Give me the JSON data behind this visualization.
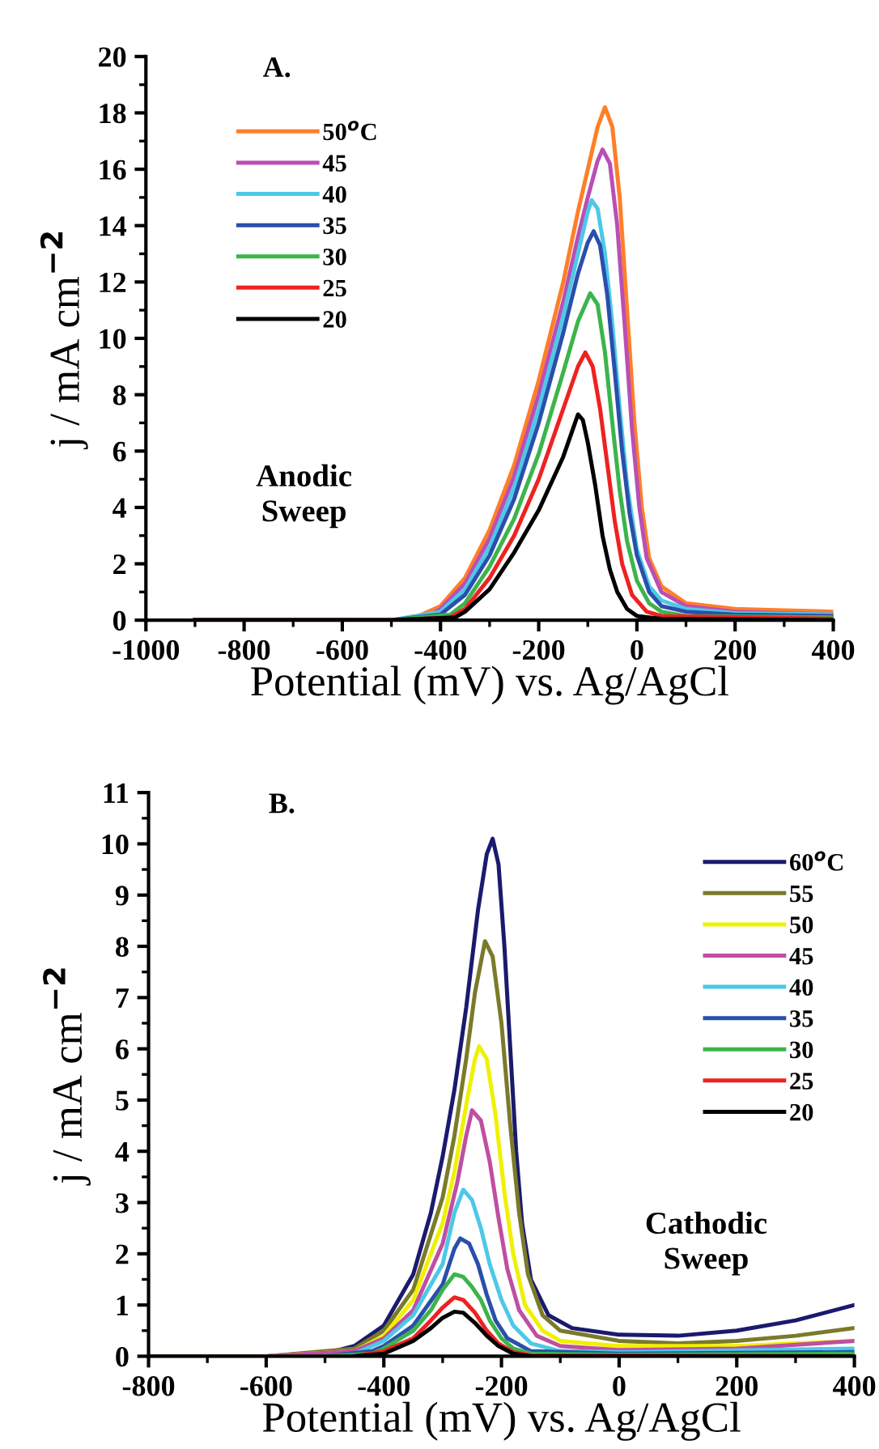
{
  "chart_data": [
    {
      "type": "line",
      "title": "A.",
      "xlabel": "Potential (mV) vs. Ag/AgCl",
      "ylabel": "j / mA cm$^{−2}$",
      "xlim": [
        -1000,
        400
      ],
      "xticks": [
        -1000,
        -800,
        -600,
        -400,
        -200,
        0,
        200,
        400
      ],
      "ylim": [
        0,
        20
      ],
      "yticks": [
        0,
        2,
        4,
        6,
        8,
        10,
        12,
        14,
        16,
        18,
        20
      ],
      "grid": false,
      "legend": "top left",
      "annotations": [
        "Anodic\nSweep"
      ],
      "series": [
        {
          "name": "50$^{o}$C",
          "color": "#ff7f27",
          "x": [
            -900,
            -500,
            -450,
            -400,
            -350,
            -300,
            -250,
            -200,
            -150,
            -120,
            -100,
            -80,
            -65,
            -50,
            -35,
            -20,
            -5,
            10,
            25,
            50,
            100,
            200,
            300,
            400
          ],
          "values": [
            0,
            0,
            0.1,
            0.5,
            1.5,
            3.2,
            5.5,
            8.5,
            12,
            14.5,
            16,
            17.5,
            18.2,
            17.5,
            15,
            11,
            7,
            4,
            2.2,
            1.2,
            0.6,
            0.4,
            0.35,
            0.3
          ]
        },
        {
          "name": "45",
          "color": "#b94fb6",
          "x": [
            -900,
            -500,
            -420,
            -400,
            -350,
            -300,
            -250,
            -200,
            -150,
            -120,
            -100,
            -80,
            -70,
            -55,
            -40,
            -25,
            -10,
            5,
            20,
            50,
            100,
            200,
            300,
            400
          ],
          "values": [
            0,
            0,
            0.2,
            0.4,
            1.3,
            2.9,
            5.1,
            8,
            11.3,
            13.6,
            15,
            16.3,
            16.7,
            16.2,
            14,
            10.5,
            6.8,
            4,
            2.2,
            1,
            0.5,
            0.3,
            0.25,
            0.2
          ]
        },
        {
          "name": "40",
          "color": "#4dc8e8",
          "x": [
            -900,
            -500,
            -400,
            -350,
            -300,
            -250,
            -200,
            -150,
            -120,
            -100,
            -92,
            -80,
            -65,
            -50,
            -35,
            -20,
            0,
            25,
            50,
            100,
            200,
            400
          ],
          "values": [
            0,
            0,
            0.3,
            1.1,
            2.6,
            4.7,
            7.5,
            10.8,
            13,
            14.5,
            14.9,
            14.6,
            13,
            10.5,
            7.5,
            4.8,
            2.5,
            1.2,
            0.7,
            0.4,
            0.25,
            0.2
          ]
        },
        {
          "name": "35",
          "color": "#2a4faa",
          "x": [
            -900,
            -500,
            -400,
            -350,
            -300,
            -250,
            -200,
            -150,
            -120,
            -100,
            -88,
            -75,
            -60,
            -45,
            -30,
            -15,
            0,
            25,
            50,
            100,
            200,
            400
          ],
          "values": [
            0,
            0,
            0.2,
            0.9,
            2.3,
            4.3,
            7,
            10.2,
            12.3,
            13.4,
            13.8,
            13.3,
            11.5,
            8.8,
            6,
            3.8,
            2.3,
            1,
            0.5,
            0.3,
            0.2,
            0.15
          ]
        },
        {
          "name": "30",
          "color": "#3cb44b",
          "x": [
            -900,
            -500,
            -380,
            -350,
            -300,
            -250,
            -200,
            -150,
            -120,
            -95,
            -80,
            -65,
            -50,
            -35,
            -20,
            0,
            25,
            50,
            100,
            400
          ],
          "values": [
            0,
            0,
            0.2,
            0.6,
            1.9,
            3.6,
            5.9,
            8.8,
            10.6,
            11.6,
            11.2,
            9.5,
            7,
            4.6,
            2.8,
            1.4,
            0.6,
            0.3,
            0.15,
            0.1
          ]
        },
        {
          "name": "25",
          "color": "#ee2222",
          "x": [
            -900,
            -500,
            -380,
            -350,
            -300,
            -250,
            -200,
            -150,
            -120,
            -105,
            -90,
            -75,
            -60,
            -45,
            -30,
            -10,
            20,
            50,
            400
          ],
          "values": [
            0,
            0,
            0.1,
            0.4,
            1.5,
            3,
            5,
            7.5,
            9,
            9.5,
            9,
            7.5,
            5.5,
            3.5,
            2,
            0.9,
            0.3,
            0.15,
            0.05
          ]
        },
        {
          "name": "20",
          "color": "#000000",
          "x": [
            -900,
            -500,
            -370,
            -350,
            -300,
            -250,
            -200,
            -150,
            -130,
            -120,
            -110,
            -100,
            -85,
            -70,
            -55,
            -40,
            -20,
            0,
            50,
            400
          ],
          "values": [
            0,
            0,
            0.1,
            0.3,
            1.1,
            2.4,
            3.9,
            5.8,
            6.8,
            7.3,
            7.1,
            6.3,
            4.8,
            3,
            1.8,
            1,
            0.4,
            0.15,
            0.05,
            0
          ]
        }
      ]
    },
    {
      "type": "line",
      "title": "B.",
      "xlabel": "Potential (mV) vs. Ag/AgCl",
      "ylabel": "j / mA cm$^{−2}$",
      "xlim": [
        -800,
        400
      ],
      "xticks": [
        -800,
        -600,
        -400,
        -200,
        0,
        200,
        400
      ],
      "ylim": [
        0,
        11
      ],
      "yticks": [
        0,
        1,
        2,
        3,
        4,
        5,
        6,
        7,
        8,
        9,
        10,
        11
      ],
      "grid": false,
      "legend": "top right",
      "annotations": [
        "Cathodic\nSweep"
      ],
      "series": [
        {
          "name": "60$^{o}$C",
          "color": "#1a1a6e",
          "x": [
            -800,
            -600,
            -500,
            -450,
            -400,
            -350,
            -320,
            -300,
            -280,
            -260,
            -240,
            -225,
            -215,
            -205,
            -195,
            -185,
            -175,
            -165,
            -150,
            -120,
            -80,
            0,
            100,
            200,
            300,
            400
          ],
          "values": [
            0,
            0,
            0.05,
            0.2,
            0.6,
            1.6,
            2.8,
            3.9,
            5.2,
            6.8,
            8.7,
            9.8,
            10.1,
            9.6,
            8,
            6,
            4,
            2.6,
            1.5,
            0.8,
            0.55,
            0.42,
            0.4,
            0.5,
            0.7,
            1.0
          ]
        },
        {
          "name": "55",
          "color": "#7a7a2a",
          "x": [
            -800,
            -600,
            -450,
            -400,
            -350,
            -300,
            -280,
            -260,
            -245,
            -228,
            -215,
            -200,
            -185,
            -170,
            -155,
            -130,
            -100,
            0,
            100,
            200,
            300,
            400
          ],
          "values": [
            0,
            0,
            0.15,
            0.5,
            1.3,
            3.1,
            4.3,
            5.8,
            7.1,
            8.1,
            7.8,
            6.5,
            4.5,
            2.8,
            1.6,
            0.8,
            0.5,
            0.3,
            0.25,
            0.3,
            0.4,
            0.55
          ]
        },
        {
          "name": "50",
          "color": "#f0f000",
          "x": [
            -600,
            -450,
            -400,
            -350,
            -300,
            -280,
            -260,
            -245,
            -238,
            -225,
            -210,
            -195,
            -180,
            -160,
            -130,
            -100,
            0,
            200,
            400
          ],
          "values": [
            0,
            0.1,
            0.4,
            1.1,
            2.6,
            3.6,
            4.9,
            5.8,
            6.05,
            5.8,
            4.7,
            3.2,
            2,
            1,
            0.5,
            0.3,
            0.2,
            0.2,
            0.3
          ]
        },
        {
          "name": "45",
          "color": "#c04fa0",
          "x": [
            -600,
            -450,
            -400,
            -350,
            -300,
            -275,
            -260,
            -250,
            -235,
            -220,
            -205,
            -190,
            -170,
            -140,
            -100,
            0,
            200,
            400
          ],
          "values": [
            0,
            0.1,
            0.35,
            0.9,
            2.2,
            3.4,
            4.3,
            4.8,
            4.6,
            3.8,
            2.7,
            1.7,
            0.9,
            0.4,
            0.2,
            0.12,
            0.15,
            0.3
          ]
        },
        {
          "name": "40",
          "color": "#4dc8e8",
          "x": [
            -500,
            -450,
            -400,
            -350,
            -300,
            -280,
            -265,
            -250,
            -235,
            -220,
            -200,
            -180,
            -150,
            -100,
            0,
            400
          ],
          "values": [
            0,
            0.05,
            0.3,
            0.8,
            1.8,
            2.8,
            3.25,
            3.05,
            2.5,
            1.8,
            1.1,
            0.6,
            0.25,
            0.1,
            0.08,
            0.15
          ]
        },
        {
          "name": "35",
          "color": "#2a4faa",
          "x": [
            -500,
            -420,
            -400,
            -350,
            -300,
            -280,
            -270,
            -255,
            -240,
            -225,
            -210,
            -190,
            -150,
            0,
            400
          ],
          "values": [
            0,
            0.1,
            0.2,
            0.6,
            1.4,
            2.1,
            2.3,
            2.2,
            1.8,
            1.2,
            0.7,
            0.35,
            0.1,
            0.05,
            0.08
          ]
        },
        {
          "name": "30",
          "color": "#3cb44b",
          "x": [
            -500,
            -420,
            -400,
            -350,
            -320,
            -300,
            -280,
            -265,
            -250,
            -235,
            -220,
            -200,
            -180,
            -150,
            0,
            400
          ],
          "values": [
            0,
            0.05,
            0.15,
            0.5,
            0.9,
            1.3,
            1.6,
            1.55,
            1.35,
            1.1,
            0.7,
            0.35,
            0.15,
            0.05,
            0.03,
            0.05
          ]
        },
        {
          "name": "25",
          "color": "#ee2222",
          "x": [
            -450,
            -400,
            -350,
            -320,
            -300,
            -280,
            -265,
            -245,
            -225,
            -205,
            -180,
            -150,
            400
          ],
          "values": [
            0,
            0.1,
            0.35,
            0.7,
            0.95,
            1.15,
            1.1,
            0.85,
            0.5,
            0.25,
            0.08,
            0.02,
            0
          ]
        },
        {
          "name": "20",
          "color": "#000000",
          "x": [
            -450,
            -400,
            -350,
            -320,
            -300,
            -280,
            -265,
            -245,
            -225,
            -205,
            -180,
            -150,
            400
          ],
          "values": [
            0,
            0.05,
            0.3,
            0.55,
            0.75,
            0.87,
            0.85,
            0.65,
            0.4,
            0.2,
            0.05,
            0,
            0
          ]
        }
      ]
    }
  ]
}
